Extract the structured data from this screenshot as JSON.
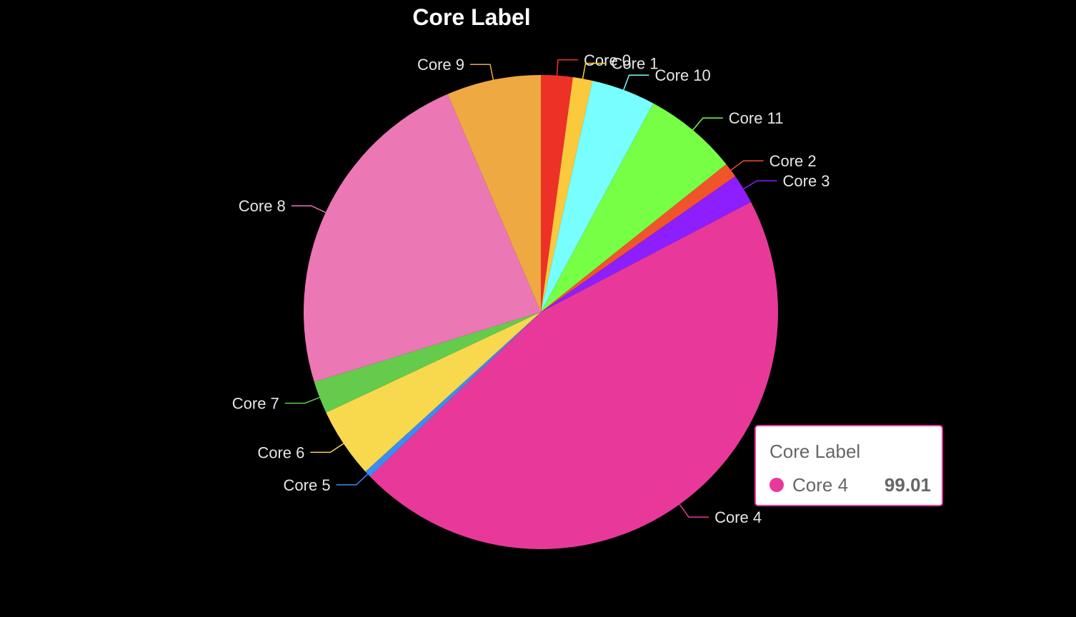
{
  "chart_data": {
    "type": "pie",
    "title": "Core Label",
    "categories": [
      "Core 0",
      "Core 1",
      "Core 10",
      "Core 11",
      "Core 2",
      "Core 3",
      "Core 4",
      "Core 5",
      "Core 6",
      "Core 7",
      "Core 8",
      "Core 9"
    ],
    "values": [
      4.7,
      2.9,
      9.5,
      14.0,
      2.2,
      4.4,
      99.01,
      1.0,
      10.4,
      4.8,
      50.8,
      14.0
    ],
    "colors": [
      "#ee3127",
      "#fac93c",
      "#77ffff",
      "#77ff45",
      "#f1532a",
      "#8d1efd",
      "#e8399b",
      "#3d8cf0",
      "#f8d84d",
      "#64cb4d",
      "#ec77b5",
      "#eea942"
    ],
    "start_angle_deg": 0,
    "direction": "clockwise",
    "legend": "none",
    "tooltip": {
      "title": "Core Label",
      "name": "Core 4",
      "value": "99.01",
      "color": "#e8399b"
    }
  }
}
